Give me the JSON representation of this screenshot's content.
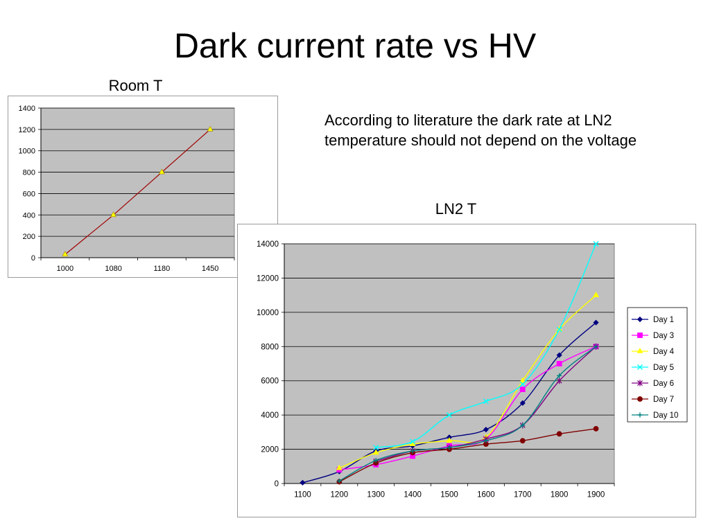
{
  "slide": {
    "title": "Dark current rate vs HV",
    "room_caption": "Room T",
    "ln2_caption": "LN2 T",
    "note": "According to literature the dark rate at LN2 temperature should not depend on the voltage"
  },
  "chart_data": [
    {
      "type": "line",
      "categories": [
        "1000",
        "1080",
        "1180",
        "1450"
      ],
      "series": [
        {
          "values": [
            30,
            400,
            800,
            1200
          ],
          "color": "#a00000",
          "marker": "triangle",
          "marker_color": "#ffff00"
        }
      ],
      "ylim": [
        0,
        1400
      ],
      "yticks": [
        0,
        200,
        400,
        600,
        800,
        1000,
        1200,
        1400
      ],
      "grid": true,
      "plot_background": "#c0c0c0"
    },
    {
      "type": "line",
      "categories": [
        "1100",
        "1200",
        "1300",
        "1400",
        "1500",
        "1600",
        "1700",
        "1800",
        "1900"
      ],
      "series": [
        {
          "name": "Day 1",
          "values": [
            50,
            700,
            1900,
            2200,
            2700,
            3150,
            4700,
            7500,
            9400
          ],
          "color": "#000080",
          "marker": "diamond"
        },
        {
          "name": "Day 3",
          "values": [
            null,
            800,
            1100,
            1600,
            2200,
            2600,
            5500,
            7000,
            8000
          ],
          "color": "#ff00ff",
          "marker": "square"
        },
        {
          "name": "Day 4",
          "values": [
            null,
            900,
            1800,
            2300,
            2500,
            2700,
            6000,
            9000,
            11000
          ],
          "color": "#ffff00",
          "marker": "triangle"
        },
        {
          "name": "Day 5",
          "values": [
            null,
            null,
            2100,
            2450,
            4000,
            4800,
            5800,
            9000,
            14000
          ],
          "color": "#00ffff",
          "marker": "x"
        },
        {
          "name": "Day 6",
          "values": [
            null,
            null,
            1300,
            1900,
            2100,
            2600,
            3400,
            6000,
            8000
          ],
          "color": "#800080",
          "marker": "star"
        },
        {
          "name": "Day 7",
          "values": [
            null,
            100,
            1200,
            1800,
            2000,
            2300,
            2500,
            2900,
            3200
          ],
          "color": "#800000",
          "marker": "circle"
        },
        {
          "name": "Day 10",
          "values": [
            null,
            150,
            1350,
            1900,
            2100,
            2500,
            3400,
            6300,
            8000
          ],
          "color": "#008080",
          "marker": "plus"
        }
      ],
      "ylim": [
        0,
        14000
      ],
      "yticks": [
        0,
        2000,
        4000,
        6000,
        8000,
        10000,
        12000,
        14000
      ],
      "grid": true,
      "legend": "right",
      "plot_background": "#c0c0c0"
    }
  ]
}
